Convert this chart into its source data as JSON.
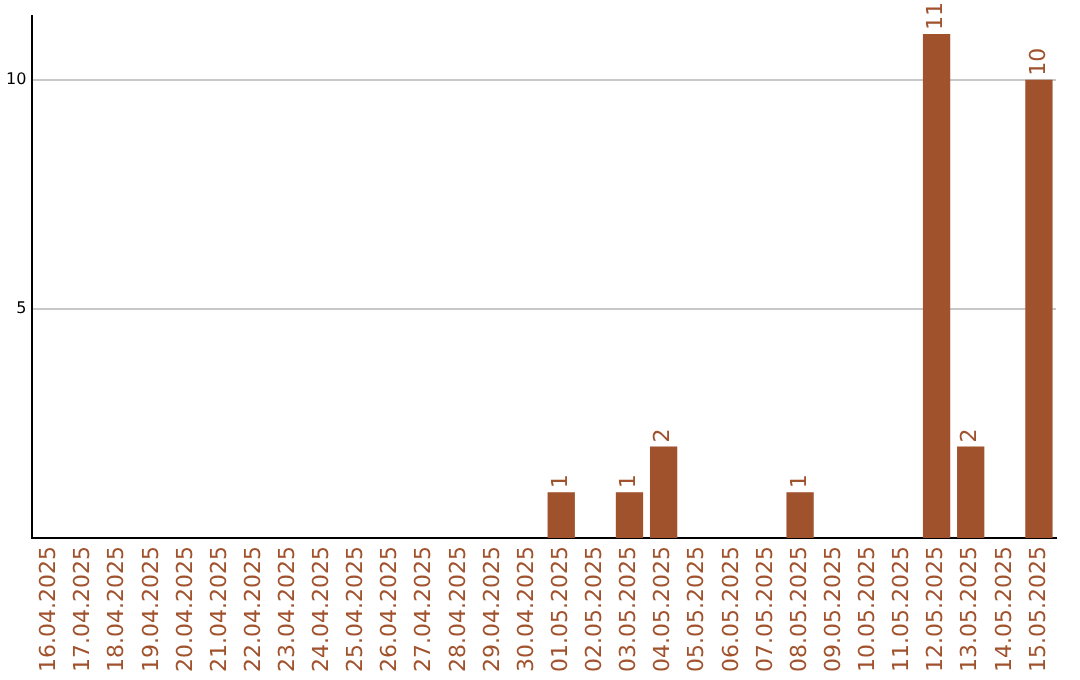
{
  "chart_data": {
    "type": "bar",
    "categories": [
      "16.04.2025",
      "17.04.2025",
      "18.04.2025",
      "19.04.2025",
      "20.04.2025",
      "21.04.2025",
      "22.04.2025",
      "23.04.2025",
      "24.04.2025",
      "25.04.2025",
      "26.04.2025",
      "27.04.2025",
      "28.04.2025",
      "29.04.2025",
      "30.04.2025",
      "01.05.2025",
      "02.05.2025",
      "03.05.2025",
      "04.05.2025",
      "05.05.2025",
      "06.05.2025",
      "07.05.2025",
      "08.05.2025",
      "09.05.2025",
      "10.05.2025",
      "11.05.2025",
      "12.05.2025",
      "13.05.2025",
      "14.05.2025",
      "15.05.2025"
    ],
    "values": [
      0,
      0,
      0,
      0,
      0,
      0,
      0,
      0,
      0,
      0,
      0,
      0,
      0,
      0,
      0,
      1,
      0,
      1,
      2,
      0,
      0,
      0,
      1,
      0,
      0,
      0,
      11,
      2,
      0,
      10
    ],
    "value_labels": [
      null,
      null,
      null,
      null,
      null,
      null,
      null,
      null,
      null,
      null,
      null,
      null,
      null,
      null,
      null,
      "1",
      null,
      "1",
      "2",
      null,
      null,
      null,
      "1",
      null,
      null,
      null,
      "11",
      "2",
      null,
      "10"
    ],
    "color": "#a0522d",
    "ylim": [
      0,
      11.4
    ],
    "yticks": [
      5,
      10
    ],
    "grid": "y",
    "legend": false
  }
}
